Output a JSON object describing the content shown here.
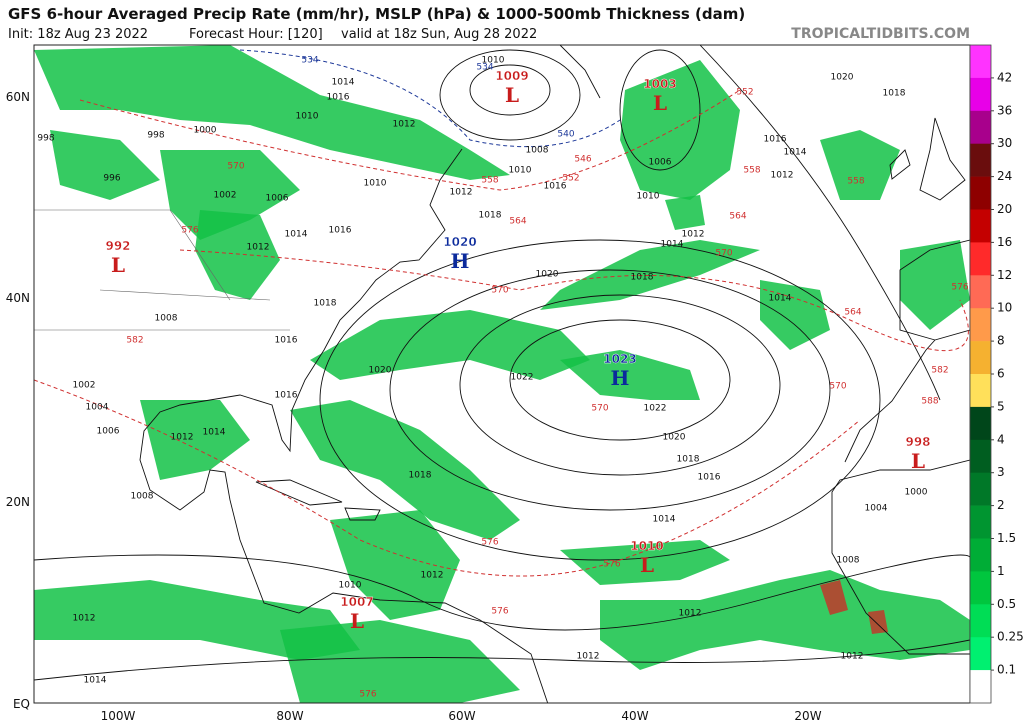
{
  "header": {
    "title": "GFS 6-hour Averaged Precip Rate (mm/hr), MSLP (hPa) & 1000-500mb Thickness (dam)",
    "init": "Init: 18z Aug 23 2022",
    "forecast_hour": "Forecast Hour: [120]",
    "valid": "valid at 18z Sun, Aug 28 2022",
    "site": "TROPICALTIDBITS.COM"
  },
  "map": {
    "lat_labels": [
      "60N",
      "40N",
      "20N",
      "EQ"
    ],
    "lon_labels": [
      "100W",
      "80W",
      "60W",
      "40W",
      "20W"
    ],
    "centers": [
      {
        "letter": "L",
        "pressure": 1009
      },
      {
        "letter": "L",
        "pressure": 1003
      },
      {
        "letter": "H",
        "pressure": 1020
      },
      {
        "letter": "L",
        "pressure": 992
      },
      {
        "letter": "H",
        "pressure": 1023
      },
      {
        "letter": "L",
        "pressure": 998
      },
      {
        "letter": "L",
        "pressure": 1010
      },
      {
        "letter": "L",
        "pressure": 1007
      }
    ],
    "isobar_labels": [
      1010,
      1014,
      1016,
      1012,
      1010,
      1008,
      1010,
      1016,
      1012,
      1010,
      1018,
      1020,
      1018,
      1014,
      1012,
      1010,
      1006,
      1016,
      1014,
      1012,
      1020,
      1018,
      1014,
      1020,
      1022,
      1022,
      1020,
      1018,
      1016,
      1014,
      1012,
      1012,
      1012,
      1014,
      1012,
      1010,
      1008,
      1004,
      1000,
      1008,
      1012,
      1014,
      1018,
      1016,
      1012,
      1016,
      1018,
      1008,
      1002,
      1004,
      1006,
      998,
      998,
      996,
      1000,
      1002,
      1006,
      1012,
      1014,
      1016
    ],
    "thickness_labels": [
      534,
      534,
      540,
      546,
      552,
      552,
      558,
      558,
      558,
      564,
      564,
      564,
      570,
      570,
      570,
      570,
      576,
      576,
      582,
      582,
      588,
      576,
      576,
      576,
      576,
      570
    ]
  },
  "colorbar": {
    "labels": [
      42,
      36,
      30,
      24,
      20,
      16,
      12,
      10,
      8,
      6,
      5,
      4,
      3,
      2,
      1.5,
      1,
      0.5,
      0.25,
      0.1
    ],
    "colors": [
      "#ff33ff",
      "#e800e8",
      "#a8008c",
      "#6a0d0d",
      "#8e0000",
      "#c40000",
      "#ff2a2a",
      "#ff6a55",
      "#ff9a4a",
      "#f5b130",
      "#ffe05a",
      "#00461a",
      "#005e20",
      "#007828",
      "#009530",
      "#00ad36",
      "#00c63e",
      "#00dd55",
      "#00f070",
      "#ffffff"
    ]
  }
}
